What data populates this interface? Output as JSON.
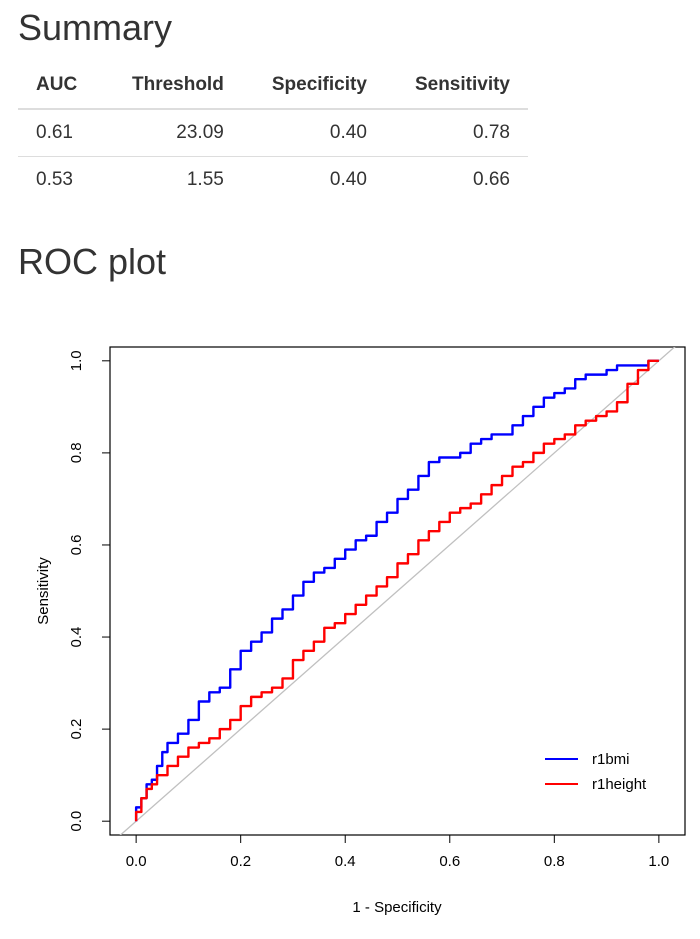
{
  "summary": {
    "heading": "Summary",
    "columns": [
      "AUC",
      "Threshold",
      "Specificity",
      "Sensitivity"
    ],
    "rows": [
      [
        "0.61",
        "23.09",
        "0.40",
        "0.78"
      ],
      [
        "0.53",
        "1.55",
        "0.40",
        "0.66"
      ]
    ]
  },
  "roc": {
    "heading": "ROC plot"
  },
  "chart_data": {
    "type": "line",
    "title": "",
    "xlabel": "1 - Specificity",
    "ylabel": "Sensitivity",
    "xlim": [
      -0.05,
      1.05
    ],
    "ylim": [
      -0.03,
      1.03
    ],
    "xticks": [
      "0.0",
      "0.2",
      "0.4",
      "0.6",
      "0.8",
      "1.0"
    ],
    "yticks": [
      "0.0",
      "0.2",
      "0.4",
      "0.6",
      "0.8",
      "1.0"
    ],
    "grid": false,
    "legend_position": "bottom-right",
    "reference_line": {
      "color": "#c0c0c0",
      "points": [
        [
          -0.05,
          -0.05
        ],
        [
          1.05,
          1.05
        ]
      ]
    },
    "series": [
      {
        "name": "r1bmi",
        "color": "#0000ff",
        "x": [
          0.0,
          0.01,
          0.02,
          0.03,
          0.04,
          0.05,
          0.06,
          0.08,
          0.1,
          0.12,
          0.14,
          0.16,
          0.18,
          0.2,
          0.22,
          0.24,
          0.26,
          0.28,
          0.3,
          0.32,
          0.34,
          0.36,
          0.38,
          0.4,
          0.42,
          0.44,
          0.46,
          0.48,
          0.5,
          0.52,
          0.54,
          0.56,
          0.58,
          0.6,
          0.62,
          0.64,
          0.66,
          0.68,
          0.7,
          0.72,
          0.74,
          0.76,
          0.78,
          0.8,
          0.82,
          0.84,
          0.86,
          0.88,
          0.9,
          0.92,
          0.94,
          0.96,
          0.98,
          1.0
        ],
        "y": [
          0.0,
          0.03,
          0.05,
          0.08,
          0.09,
          0.12,
          0.15,
          0.17,
          0.19,
          0.22,
          0.26,
          0.28,
          0.29,
          0.33,
          0.37,
          0.39,
          0.41,
          0.44,
          0.46,
          0.49,
          0.52,
          0.54,
          0.55,
          0.57,
          0.59,
          0.61,
          0.62,
          0.65,
          0.67,
          0.7,
          0.72,
          0.75,
          0.78,
          0.79,
          0.79,
          0.8,
          0.82,
          0.83,
          0.84,
          0.84,
          0.86,
          0.88,
          0.9,
          0.92,
          0.93,
          0.94,
          0.96,
          0.97,
          0.97,
          0.98,
          0.99,
          0.99,
          0.99,
          1.0
        ]
      },
      {
        "name": "r1height",
        "color": "#ff0000",
        "x": [
          0.0,
          0.01,
          0.02,
          0.03,
          0.04,
          0.06,
          0.08,
          0.1,
          0.12,
          0.14,
          0.16,
          0.18,
          0.2,
          0.22,
          0.24,
          0.26,
          0.28,
          0.3,
          0.32,
          0.34,
          0.36,
          0.38,
          0.4,
          0.42,
          0.44,
          0.46,
          0.48,
          0.5,
          0.52,
          0.54,
          0.56,
          0.58,
          0.6,
          0.62,
          0.64,
          0.66,
          0.68,
          0.7,
          0.72,
          0.74,
          0.76,
          0.78,
          0.8,
          0.82,
          0.84,
          0.86,
          0.88,
          0.9,
          0.92,
          0.94,
          0.96,
          0.98,
          1.0
        ],
        "y": [
          0.0,
          0.02,
          0.05,
          0.07,
          0.08,
          0.1,
          0.12,
          0.14,
          0.16,
          0.17,
          0.18,
          0.2,
          0.22,
          0.25,
          0.27,
          0.28,
          0.29,
          0.31,
          0.35,
          0.37,
          0.39,
          0.42,
          0.43,
          0.45,
          0.47,
          0.49,
          0.51,
          0.53,
          0.56,
          0.58,
          0.61,
          0.63,
          0.65,
          0.67,
          0.68,
          0.69,
          0.71,
          0.73,
          0.75,
          0.77,
          0.78,
          0.8,
          0.82,
          0.83,
          0.84,
          0.86,
          0.87,
          0.88,
          0.89,
          0.91,
          0.95,
          0.98,
          1.0
        ]
      }
    ]
  }
}
